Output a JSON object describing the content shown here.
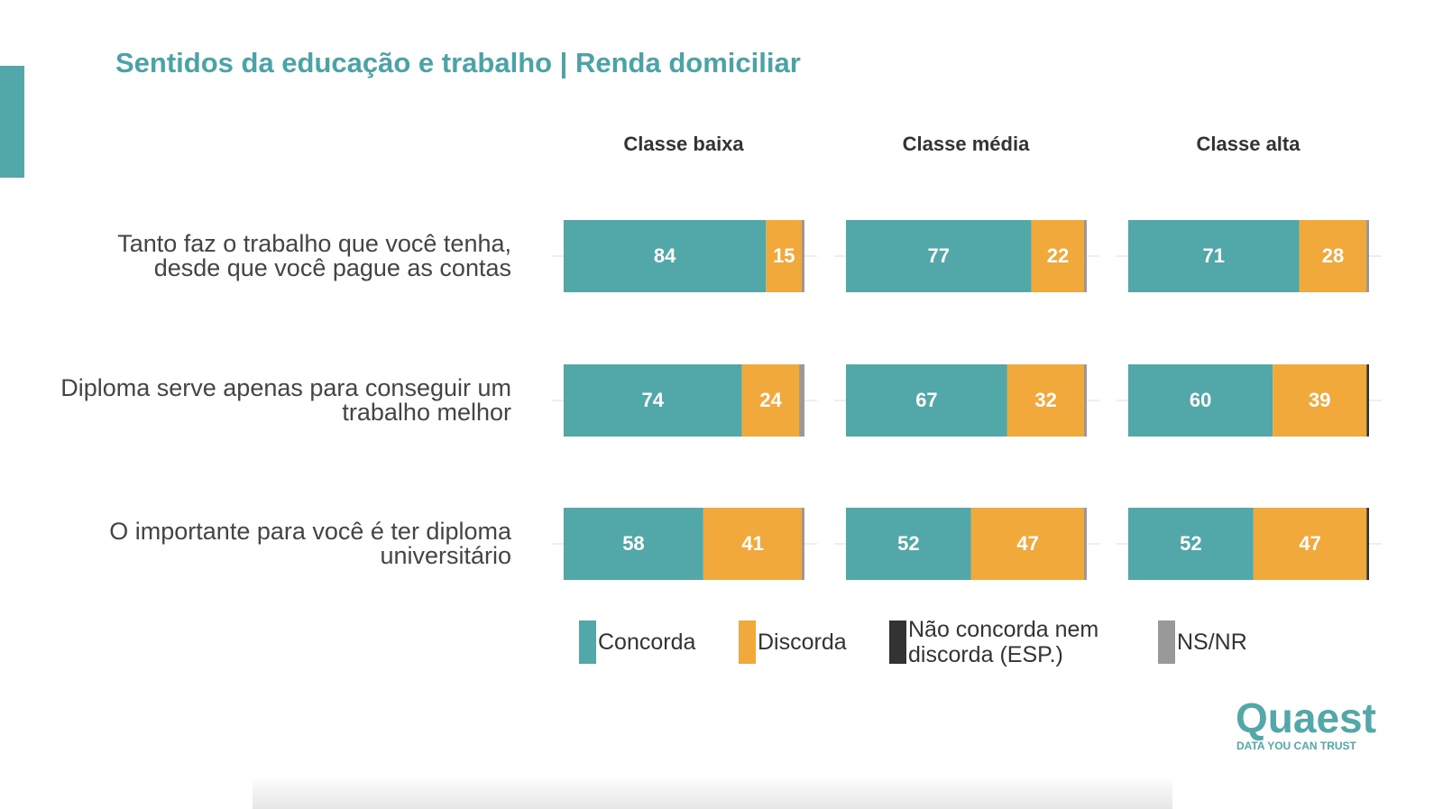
{
  "chart_data": {
    "type": "bar",
    "orientation": "horizontal",
    "stacked": true,
    "title": "Sentidos da educação e trabalho | Renda domiciliar",
    "panels": [
      "Classe baixa",
      "Classe média",
      "Classe alta"
    ],
    "categories": [
      "Tanto faz o trabalho que você tenha, desde que você pague as contas",
      "Diploma serve apenas para conseguir um trabalho melhor",
      "O importante para você é ter diploma universitário"
    ],
    "xlim": [
      0,
      100
    ],
    "series": [
      {
        "name": "Concorda",
        "color": "#52a7a8",
        "show_labels": true,
        "values": [
          [
            84,
            77,
            71
          ],
          [
            74,
            67,
            60
          ],
          [
            58,
            52,
            52
          ]
        ]
      },
      {
        "name": "Discorda",
        "color": "#f2a93b",
        "show_labels": true,
        "values": [
          [
            15,
            22,
            28
          ],
          [
            24,
            32,
            39
          ],
          [
            41,
            47,
            47
          ]
        ]
      },
      {
        "name": "Não concorda nem discorda (ESP.)",
        "color": "#333333",
        "show_labels": true,
        "values": [
          [
            0,
            0,
            0
          ],
          [
            0,
            0,
            1
          ],
          [
            0,
            0,
            1
          ]
        ]
      },
      {
        "name": "NS/NR",
        "color": "#999999",
        "show_labels": false,
        "values": [
          [
            1,
            1,
            1
          ],
          [
            2,
            1,
            0
          ],
          [
            1,
            1,
            0
          ]
        ]
      }
    ]
  },
  "logo": {
    "name": "Quaest",
    "tagline": "DATA YOU CAN TRUST"
  }
}
